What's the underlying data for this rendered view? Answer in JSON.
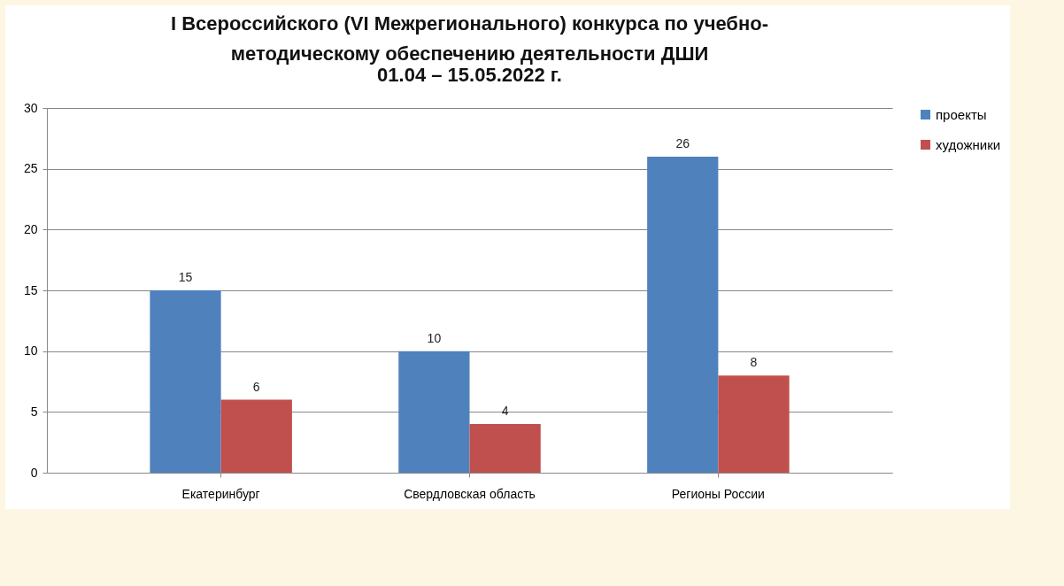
{
  "chart_data": {
    "type": "bar",
    "title": "I Всероссийского (VI Межрегионального) конкурса по учебно-методическому обеспечению деятельности ДШИ",
    "subtitle": "01.04 – 15.05.2022 г.",
    "categories": [
      "Екатеринбург",
      "Свердловская область",
      "Регионы России"
    ],
    "series": [
      {
        "name": "проекты",
        "color": "#4f81bd",
        "values": [
          15,
          10,
          26
        ]
      },
      {
        "name": "художники",
        "color": "#c0504d",
        "values": [
          6,
          4,
          8
        ]
      }
    ],
    "ylim": [
      0,
      30
    ],
    "yticks": [
      0,
      5,
      10,
      15,
      20,
      25,
      30
    ],
    "grid": "y",
    "legend": "right",
    "data_labels": true
  }
}
